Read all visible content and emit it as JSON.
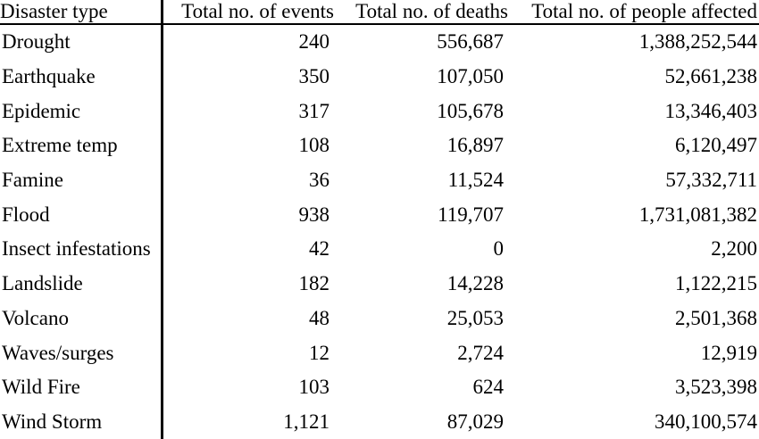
{
  "table": {
    "headers": [
      "Disaster type",
      "Total no. of events",
      "Total no. of deaths",
      "Total no. of people affected"
    ],
    "rows": [
      [
        "Drought",
        "240",
        "556,687",
        "1,388,252,544"
      ],
      [
        "Earthquake",
        "350",
        "107,050",
        "52,661,238"
      ],
      [
        "Epidemic",
        "317",
        "105,678",
        "13,346,403"
      ],
      [
        "Extreme temp",
        "108",
        "16,897",
        "6,120,497"
      ],
      [
        "Famine",
        "36",
        "11,524",
        "57,332,711"
      ],
      [
        "Flood",
        "938",
        "119,707",
        "1,731,081,382"
      ],
      [
        "Insect infestations",
        "42",
        "0",
        "2,200"
      ],
      [
        "Landslide",
        "182",
        "14,228",
        "1,122,215"
      ],
      [
        "Volcano",
        "48",
        "25,053",
        "2,501,368"
      ],
      [
        "Waves/surges",
        "12",
        "2,724",
        "12,919"
      ],
      [
        "Wild Fire",
        "103",
        "624",
        "3,523,398"
      ],
      [
        "Wind Storm",
        "1,121",
        "87,029",
        "340,100,574"
      ]
    ]
  }
}
